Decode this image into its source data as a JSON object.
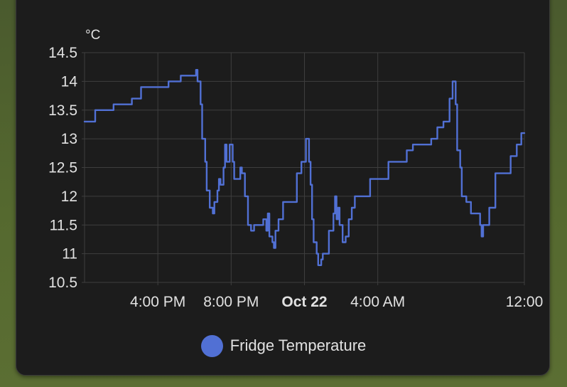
{
  "chart_data": {
    "type": "line",
    "title": "",
    "unit": "°C",
    "xlabel": "",
    "ylabel": "°C",
    "ylim": [
      10.5,
      14.5
    ],
    "y_ticks": [
      "14.5",
      "14",
      "13.5",
      "13",
      "12.5",
      "12",
      "11.5",
      "11",
      "10.5"
    ],
    "x_ticks": [
      {
        "label": "4:00 PM",
        "time": "Oct 21 16:00",
        "bold": false
      },
      {
        "label": "8:00 PM",
        "time": "Oct 21 20:00",
        "bold": false
      },
      {
        "label": "Oct 22",
        "time": "Oct 22 00:00",
        "bold": true
      },
      {
        "label": "4:00 AM",
        "time": "Oct 22 04:00",
        "bold": false
      },
      {
        "label": "12:00",
        "time": "Oct 22 12:00",
        "bold": false
      }
    ],
    "x_range": [
      "Oct 21 12:00",
      "Oct 22 12:00"
    ],
    "grid": true,
    "legend_position": "bottom",
    "series": [
      {
        "name": "Fridge Temperature",
        "color": "#5170d4",
        "step": true,
        "points": [
          [
            "Oct 21 12:00",
            13.3
          ],
          [
            "Oct 21 12:35",
            13.5
          ],
          [
            "Oct 21 13:35",
            13.6
          ],
          [
            "Oct 21 14:35",
            13.7
          ],
          [
            "Oct 21 15:05",
            13.9
          ],
          [
            "Oct 21 16:35",
            14.0
          ],
          [
            "Oct 21 17:15",
            14.1
          ],
          [
            "Oct 21 18:05",
            14.2
          ],
          [
            "Oct 21 18:10",
            14.0
          ],
          [
            "Oct 21 18:20",
            13.6
          ],
          [
            "Oct 21 18:25",
            13.0
          ],
          [
            "Oct 21 18:35",
            12.6
          ],
          [
            "Oct 21 18:40",
            12.1
          ],
          [
            "Oct 21 18:50",
            11.8
          ],
          [
            "Oct 21 19:00",
            11.7
          ],
          [
            "Oct 21 19:05",
            11.9
          ],
          [
            "Oct 21 19:15",
            12.1
          ],
          [
            "Oct 21 19:20",
            12.3
          ],
          [
            "Oct 21 19:25",
            12.2
          ],
          [
            "Oct 21 19:35",
            12.5
          ],
          [
            "Oct 21 19:40",
            12.9
          ],
          [
            "Oct 21 19:45",
            12.6
          ],
          [
            "Oct 21 19:55",
            12.9
          ],
          [
            "Oct 21 20:05",
            12.6
          ],
          [
            "Oct 21 20:10",
            12.3
          ],
          [
            "Oct 21 20:30",
            12.5
          ],
          [
            "Oct 21 20:35",
            12.4
          ],
          [
            "Oct 21 20:45",
            12.0
          ],
          [
            "Oct 21 20:55",
            11.5
          ],
          [
            "Oct 21 21:05",
            11.4
          ],
          [
            "Oct 21 21:15",
            11.5
          ],
          [
            "Oct 21 21:45",
            11.6
          ],
          [
            "Oct 21 21:55",
            11.4
          ],
          [
            "Oct 21 22:00",
            11.7
          ],
          [
            "Oct 21 22:05",
            11.3
          ],
          [
            "Oct 21 22:15",
            11.2
          ],
          [
            "Oct 21 22:20",
            11.1
          ],
          [
            "Oct 21 22:25",
            11.4
          ],
          [
            "Oct 21 22:35",
            11.6
          ],
          [
            "Oct 21 22:50",
            11.9
          ],
          [
            "Oct 21 23:35",
            12.4
          ],
          [
            "Oct 21 23:50",
            12.6
          ],
          [
            "Oct 22 00:05",
            13.0
          ],
          [
            "Oct 22 00:15",
            12.6
          ],
          [
            "Oct 22 00:20",
            12.2
          ],
          [
            "Oct 22 00:25",
            11.6
          ],
          [
            "Oct 22 00:30",
            11.2
          ],
          [
            "Oct 22 00:40",
            11.0
          ],
          [
            "Oct 22 00:45",
            10.8
          ],
          [
            "Oct 22 00:55",
            10.9
          ],
          [
            "Oct 22 01:00",
            11.0
          ],
          [
            "Oct 22 01:20",
            11.4
          ],
          [
            "Oct 22 01:35",
            11.7
          ],
          [
            "Oct 22 01:40",
            12.0
          ],
          [
            "Oct 22 01:45",
            11.6
          ],
          [
            "Oct 22 01:50",
            11.8
          ],
          [
            "Oct 22 01:55",
            11.5
          ],
          [
            "Oct 22 02:05",
            11.2
          ],
          [
            "Oct 22 02:15",
            11.3
          ],
          [
            "Oct 22 02:25",
            11.6
          ],
          [
            "Oct 22 02:35",
            11.8
          ],
          [
            "Oct 22 02:45",
            12.0
          ],
          [
            "Oct 22 03:35",
            12.3
          ],
          [
            "Oct 22 04:35",
            12.6
          ],
          [
            "Oct 22 05:35",
            12.8
          ],
          [
            "Oct 22 05:55",
            12.9
          ],
          [
            "Oct 22 06:55",
            13.0
          ],
          [
            "Oct 22 07:15",
            13.2
          ],
          [
            "Oct 22 07:35",
            13.3
          ],
          [
            "Oct 22 07:55",
            13.7
          ],
          [
            "Oct 22 08:05",
            14.0
          ],
          [
            "Oct 22 08:15",
            13.6
          ],
          [
            "Oct 22 08:20",
            12.8
          ],
          [
            "Oct 22 08:30",
            12.5
          ],
          [
            "Oct 22 08:35",
            12.0
          ],
          [
            "Oct 22 08:50",
            11.9
          ],
          [
            "Oct 22 09:05",
            11.7
          ],
          [
            "Oct 22 09:35",
            11.5
          ],
          [
            "Oct 22 09:40",
            11.3
          ],
          [
            "Oct 22 09:45",
            11.5
          ],
          [
            "Oct 22 10:05",
            11.8
          ],
          [
            "Oct 22 10:25",
            12.4
          ],
          [
            "Oct 22 11:15",
            12.7
          ],
          [
            "Oct 22 11:35",
            12.9
          ],
          [
            "Oct 22 11:50",
            13.1
          ],
          [
            "Oct 22 12:00",
            13.1
          ]
        ]
      }
    ]
  }
}
